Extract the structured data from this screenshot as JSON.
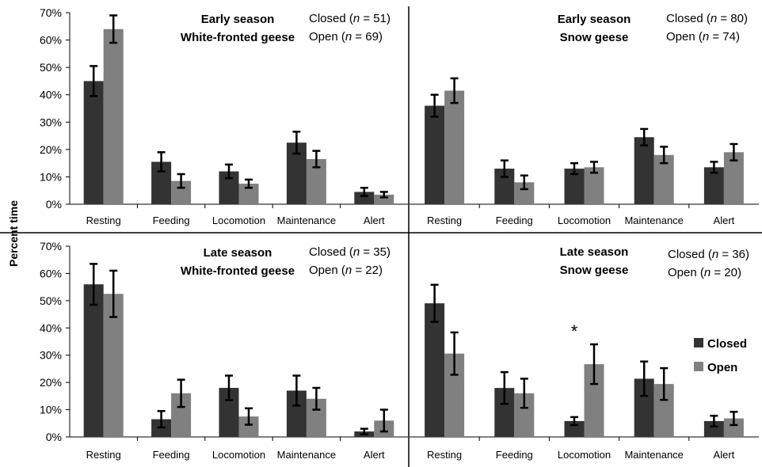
{
  "y_axis_label": "Percent time",
  "legend": [
    {
      "label": "Closed",
      "color": "#333333"
    },
    {
      "label": "Open",
      "color": "#808080"
    }
  ],
  "chart_data": [
    {
      "type": "bar",
      "title": [
        "Early season",
        "White-fronted geese"
      ],
      "sample_sizes": [
        {
          "label": "Closed",
          "n": "51"
        },
        {
          "label": "Open",
          "n": "69"
        }
      ],
      "categories": [
        "Resting",
        "Feeding",
        "Locomotion",
        "Maintenance",
        "Alert"
      ],
      "y_ticks": [
        "0%",
        "10%",
        "20%",
        "30%",
        "40%",
        "50%",
        "60%",
        "70%"
      ],
      "ylim": [
        0,
        70
      ],
      "series": [
        {
          "name": "Closed",
          "values": [
            45,
            15.5,
            12,
            22.5,
            4.5
          ],
          "errors": [
            5.5,
            3.5,
            2.5,
            4,
            1.5
          ]
        },
        {
          "name": "Open",
          "values": [
            64,
            8.5,
            7.5,
            16.5,
            3.5
          ],
          "errors": [
            5,
            2.5,
            1.5,
            3,
            1
          ]
        }
      ],
      "annotations": []
    },
    {
      "type": "bar",
      "title": [
        "Early season",
        "Snow geese"
      ],
      "sample_sizes": [
        {
          "label": "Closed",
          "n": "80"
        },
        {
          "label": "Open",
          "n": "74"
        }
      ],
      "categories": [
        "Resting",
        "Feeding",
        "Locomotion",
        "Maintenance",
        "Alert"
      ],
      "y_ticks": [],
      "ylim": [
        0,
        70
      ],
      "series": [
        {
          "name": "Closed",
          "values": [
            36,
            13,
            13,
            24.5,
            13.5
          ],
          "errors": [
            4,
            3,
            2,
            3,
            2
          ]
        },
        {
          "name": "Open",
          "values": [
            41.5,
            8,
            13.5,
            18,
            19
          ],
          "errors": [
            4.5,
            2.5,
            2,
            3,
            3
          ]
        }
      ],
      "annotations": []
    },
    {
      "type": "bar",
      "title": [
        "Late season",
        "White-fronted geese"
      ],
      "sample_sizes": [
        {
          "label": "Closed",
          "n": "35"
        },
        {
          "label": "Open",
          "n": "22"
        }
      ],
      "categories": [
        "Resting",
        "Feeding",
        "Locomotion",
        "Maintenance",
        "Alert"
      ],
      "y_ticks": [
        "0%",
        "10%",
        "20%",
        "30%",
        "40%",
        "50%",
        "60%",
        "70%"
      ],
      "ylim": [
        0,
        70
      ],
      "series": [
        {
          "name": "Closed",
          "values": [
            56,
            6.5,
            18,
            17,
            2
          ],
          "errors": [
            7.5,
            3,
            4.5,
            5.5,
            1
          ]
        },
        {
          "name": "Open",
          "values": [
            52.5,
            16,
            7.5,
            14,
            6
          ],
          "errors": [
            8.5,
            5,
            3,
            4,
            4
          ]
        }
      ],
      "annotations": []
    },
    {
      "type": "bar",
      "title": [
        "Late season",
        "Snow geese"
      ],
      "sample_sizes": [
        {
          "label": "Closed",
          "n": "36"
        },
        {
          "label": "Open",
          "n": "20"
        }
      ],
      "categories": [
        "Resting",
        "Feeding",
        "Locomotion",
        "Maintenance",
        "Alert"
      ],
      "y_ticks": [],
      "ylim": [
        0,
        70
      ],
      "series": [
        {
          "name": "Closed",
          "values": [
            50.5,
            18.5,
            6,
            22,
            6
          ],
          "errors": [
            7,
            6,
            1.5,
            6.5,
            2
          ]
        },
        {
          "name": "Open",
          "values": [
            31.5,
            16.5,
            27.5,
            20,
            7
          ],
          "errors": [
            8,
            5.5,
            7.5,
            6,
            2.5
          ]
        }
      ],
      "annotations": [
        {
          "category": "Locomotion",
          "text": "*"
        }
      ]
    }
  ]
}
